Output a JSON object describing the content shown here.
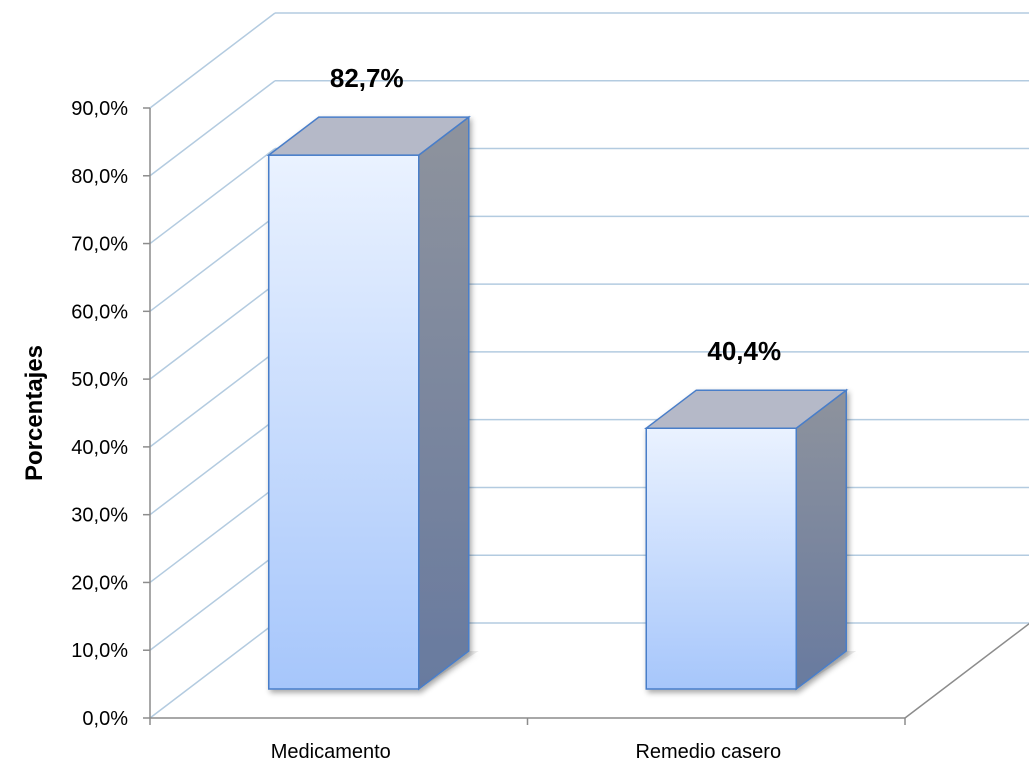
{
  "chart_data": {
    "type": "bar",
    "title": "",
    "xlabel": "",
    "ylabel": "Porcentajes",
    "categories": [
      "Medicamento",
      "Remedio casero"
    ],
    "values": [
      82.7,
      40.4
    ],
    "data_labels": [
      "82,7%",
      "40,4%"
    ],
    "ylim": [
      0,
      90
    ],
    "y_ticks": [
      0,
      10,
      20,
      30,
      40,
      50,
      60,
      70,
      80,
      90
    ],
    "y_tick_labels": [
      "0,0%",
      "10,0%",
      "20,0%",
      "30,0%",
      "40,0%",
      "50,0%",
      "60,0%",
      "70,0%",
      "80,0%",
      "90,0%"
    ],
    "style": "3d-column",
    "grid": true,
    "legend": "none",
    "colors": {
      "bar_front_top": "#eaf2ff",
      "bar_front_bottom": "#a6c6fb",
      "bar_top": "#b5b9c8",
      "bar_side_top": "#8e939d",
      "bar_side_bottom": "#687a9f",
      "bar_stroke": "#4a7ec9",
      "gridline": "#b3cbe0",
      "axis": "#8c8c8c"
    }
  }
}
